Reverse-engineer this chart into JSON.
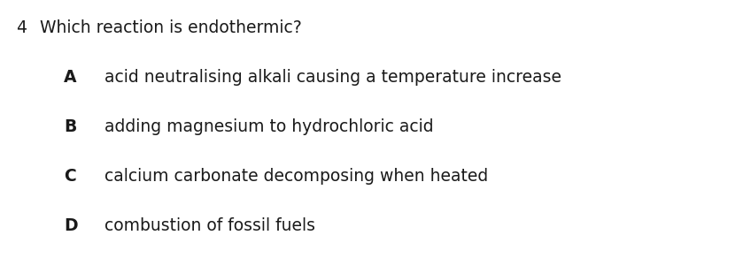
{
  "question_number": "4",
  "question_text": "Which reaction is endothermic?",
  "options": [
    {
      "label": "A",
      "text": "acid neutralising alkali causing a temperature increase"
    },
    {
      "label": "B",
      "text": "adding magnesium to hydrochloric acid"
    },
    {
      "label": "C",
      "text": "calcium carbonate decomposing when heated"
    },
    {
      "label": "D",
      "text": "combustion of fossil fuels"
    }
  ],
  "background_color": "#ffffff",
  "text_color": "#1a1a1a",
  "question_fontsize": 13.5,
  "option_label_fontsize": 13.5,
  "option_text_fontsize": 13.5,
  "fig_width": 8.39,
  "fig_height": 2.92,
  "dpi": 100
}
